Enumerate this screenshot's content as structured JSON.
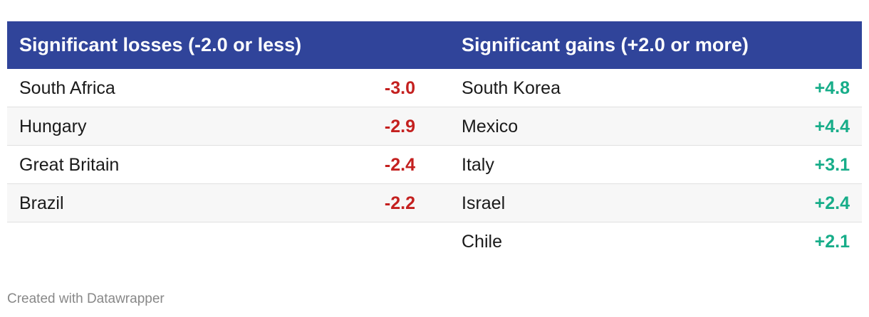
{
  "table": {
    "columns": [
      {
        "title": "Significant losses (-2.0 or less)",
        "kind": "loss",
        "rows": [
          [
            "South Africa",
            "-3.0"
          ],
          [
            "Hungary",
            "-2.9"
          ],
          [
            "Great Britain",
            "-2.4"
          ],
          [
            "Brazil",
            "-2.2"
          ]
        ]
      },
      {
        "title": "Significant gains (+2.0 or more)",
        "kind": "gain",
        "rows": [
          [
            "South Korea",
            "+4.8"
          ],
          [
            "Mexico",
            "+4.4"
          ],
          [
            "Italy",
            "+3.1"
          ],
          [
            "Israel",
            "+2.4"
          ],
          [
            "Chile",
            "+2.1"
          ]
        ]
      }
    ]
  },
  "footer": "Created with Datawrapper"
}
